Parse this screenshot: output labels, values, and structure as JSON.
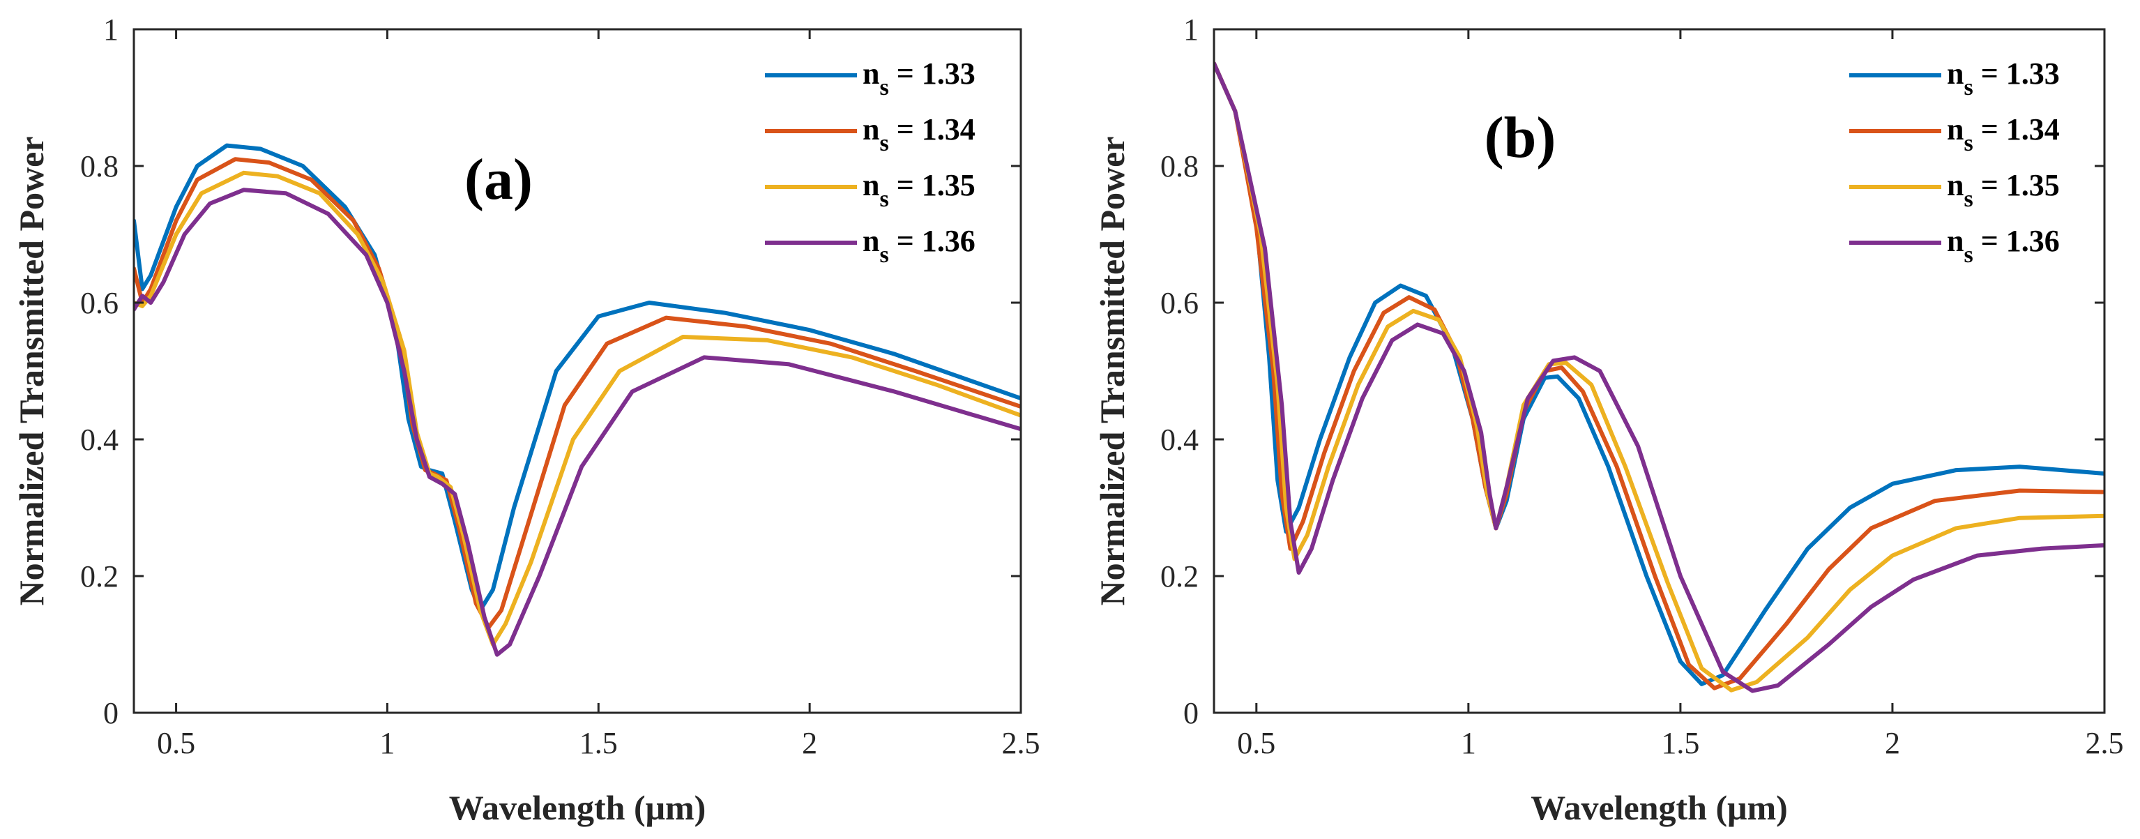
{
  "colors": [
    "#0072BD",
    "#D95319",
    "#EDB120",
    "#7E2F8E"
  ],
  "chart_data": [
    {
      "type": "line",
      "panel_label": "(a)",
      "xlabel": "Wavelength (μm)",
      "ylabel": "Normalized Transmitted Power",
      "xlim": [
        0.4,
        2.5
      ],
      "ylim": [
        0,
        1
      ],
      "xticks": [
        0.5,
        1,
        1.5,
        2,
        2.5
      ],
      "xtick_labels": [
        "0.5",
        "1",
        "1.5",
        "2",
        "2.5"
      ],
      "yticks": [
        0,
        0.2,
        0.4,
        0.6,
        0.8,
        1
      ],
      "ytick_labels": [
        "0",
        "0.2",
        "0.4",
        "0.6",
        "0.8",
        "1"
      ],
      "legend_position": "top-right",
      "series": [
        {
          "name": "n = 1.33",
          "symbol": "n",
          "subscript": "s",
          "value_text": " = 1.33",
          "points": [
            [
              0.4,
              0.72
            ],
            [
              0.42,
              0.62
            ],
            [
              0.44,
              0.64
            ],
            [
              0.5,
              0.74
            ],
            [
              0.55,
              0.8
            ],
            [
              0.62,
              0.83
            ],
            [
              0.7,
              0.825
            ],
            [
              0.8,
              0.8
            ],
            [
              0.9,
              0.74
            ],
            [
              0.97,
              0.67
            ],
            [
              1.02,
              0.56
            ],
            [
              1.05,
              0.43
            ],
            [
              1.08,
              0.36
            ],
            [
              1.1,
              0.355
            ],
            [
              1.13,
              0.35
            ],
            [
              1.16,
              0.28
            ],
            [
              1.2,
              0.18
            ],
            [
              1.22,
              0.15
            ],
            [
              1.25,
              0.18
            ],
            [
              1.3,
              0.3
            ],
            [
              1.4,
              0.5
            ],
            [
              1.5,
              0.58
            ],
            [
              1.62,
              0.6
            ],
            [
              1.8,
              0.585
            ],
            [
              2.0,
              0.56
            ],
            [
              2.2,
              0.525
            ],
            [
              2.5,
              0.46
            ]
          ]
        },
        {
          "name": "n = 1.34",
          "symbol": "n",
          "subscript": "s",
          "value_text": " = 1.34",
          "points": [
            [
              0.4,
              0.65
            ],
            [
              0.42,
              0.6
            ],
            [
              0.44,
              0.62
            ],
            [
              0.5,
              0.72
            ],
            [
              0.55,
              0.78
            ],
            [
              0.64,
              0.81
            ],
            [
              0.72,
              0.805
            ],
            [
              0.82,
              0.78
            ],
            [
              0.92,
              0.72
            ],
            [
              0.98,
              0.65
            ],
            [
              1.03,
              0.55
            ],
            [
              1.06,
              0.42
            ],
            [
              1.09,
              0.355
            ],
            [
              1.11,
              0.35
            ],
            [
              1.14,
              0.34
            ],
            [
              1.17,
              0.27
            ],
            [
              1.21,
              0.16
            ],
            [
              1.24,
              0.125
            ],
            [
              1.27,
              0.15
            ],
            [
              1.32,
              0.25
            ],
            [
              1.42,
              0.45
            ],
            [
              1.52,
              0.54
            ],
            [
              1.66,
              0.578
            ],
            [
              1.85,
              0.565
            ],
            [
              2.05,
              0.54
            ],
            [
              2.25,
              0.5
            ],
            [
              2.5,
              0.448
            ]
          ]
        },
        {
          "name": "n = 1.35",
          "symbol": "n",
          "subscript": "s",
          "value_text": " = 1.35",
          "points": [
            [
              0.4,
              0.6
            ],
            [
              0.42,
              0.595
            ],
            [
              0.44,
              0.61
            ],
            [
              0.5,
              0.7
            ],
            [
              0.56,
              0.76
            ],
            [
              0.66,
              0.79
            ],
            [
              0.74,
              0.785
            ],
            [
              0.84,
              0.76
            ],
            [
              0.93,
              0.7
            ],
            [
              0.99,
              0.63
            ],
            [
              1.04,
              0.53
            ],
            [
              1.07,
              0.41
            ],
            [
              1.1,
              0.35
            ],
            [
              1.12,
              0.345
            ],
            [
              1.15,
              0.33
            ],
            [
              1.18,
              0.26
            ],
            [
              1.22,
              0.15
            ],
            [
              1.25,
              0.1
            ],
            [
              1.28,
              0.13
            ],
            [
              1.34,
              0.22
            ],
            [
              1.44,
              0.4
            ],
            [
              1.55,
              0.5
            ],
            [
              1.7,
              0.55
            ],
            [
              1.9,
              0.545
            ],
            [
              2.1,
              0.52
            ],
            [
              2.3,
              0.48
            ],
            [
              2.5,
              0.435
            ]
          ]
        },
        {
          "name": "n = 1.36",
          "symbol": "n",
          "subscript": "s",
          "value_text": " = 1.36",
          "points": [
            [
              0.4,
              0.59
            ],
            [
              0.42,
              0.61
            ],
            [
              0.44,
              0.6
            ],
            [
              0.47,
              0.63
            ],
            [
              0.52,
              0.7
            ],
            [
              0.58,
              0.745
            ],
            [
              0.66,
              0.765
            ],
            [
              0.76,
              0.76
            ],
            [
              0.86,
              0.73
            ],
            [
              0.95,
              0.67
            ],
            [
              1.0,
              0.6
            ],
            [
              1.04,
              0.5
            ],
            [
              1.07,
              0.4
            ],
            [
              1.1,
              0.345
            ],
            [
              1.13,
              0.335
            ],
            [
              1.16,
              0.32
            ],
            [
              1.19,
              0.25
            ],
            [
              1.23,
              0.14
            ],
            [
              1.26,
              0.085
            ],
            [
              1.29,
              0.1
            ],
            [
              1.36,
              0.2
            ],
            [
              1.46,
              0.36
            ],
            [
              1.58,
              0.47
            ],
            [
              1.75,
              0.52
            ],
            [
              1.95,
              0.51
            ],
            [
              2.2,
              0.47
            ],
            [
              2.5,
              0.415
            ]
          ]
        }
      ]
    },
    {
      "type": "line",
      "panel_label": "(b)",
      "xlabel": "Wavelength (μm)",
      "ylabel": "Normalized Transmitted Power",
      "xlim": [
        0.4,
        2.5
      ],
      "ylim": [
        0,
        1
      ],
      "xticks": [
        0.5,
        1,
        1.5,
        2,
        2.5
      ],
      "xtick_labels": [
        "0.5",
        "1",
        "1.5",
        "2",
        "2.5"
      ],
      "yticks": [
        0,
        0.2,
        0.4,
        0.6,
        0.8,
        1
      ],
      "ytick_labels": [
        "0",
        "0.2",
        "0.4",
        "0.6",
        "0.8",
        "1"
      ],
      "legend_position": "top-right",
      "series": [
        {
          "name": "n = 1.33",
          "symbol": "n",
          "subscript": "s",
          "value_text": " = 1.33",
          "points": [
            [
              0.4,
              0.95
            ],
            [
              0.45,
              0.88
            ],
            [
              0.5,
              0.72
            ],
            [
              0.53,
              0.52
            ],
            [
              0.55,
              0.34
            ],
            [
              0.57,
              0.265
            ],
            [
              0.6,
              0.3
            ],
            [
              0.65,
              0.4
            ],
            [
              0.72,
              0.52
            ],
            [
              0.78,
              0.6
            ],
            [
              0.84,
              0.625
            ],
            [
              0.9,
              0.61
            ],
            [
              0.96,
              0.54
            ],
            [
              1.01,
              0.43
            ],
            [
              1.04,
              0.33
            ],
            [
              1.065,
              0.27
            ],
            [
              1.09,
              0.31
            ],
            [
              1.13,
              0.43
            ],
            [
              1.18,
              0.49
            ],
            [
              1.21,
              0.492
            ],
            [
              1.26,
              0.46
            ],
            [
              1.33,
              0.36
            ],
            [
              1.42,
              0.2
            ],
            [
              1.5,
              0.075
            ],
            [
              1.55,
              0.042
            ],
            [
              1.6,
              0.055
            ],
            [
              1.7,
              0.15
            ],
            [
              1.8,
              0.24
            ],
            [
              1.9,
              0.3
            ],
            [
              2.0,
              0.335
            ],
            [
              2.15,
              0.355
            ],
            [
              2.3,
              0.36
            ],
            [
              2.5,
              0.35
            ]
          ]
        },
        {
          "name": "n = 1.34",
          "symbol": "n",
          "subscript": "s",
          "value_text": " = 1.34",
          "points": [
            [
              0.4,
              0.95
            ],
            [
              0.45,
              0.88
            ],
            [
              0.5,
              0.71
            ],
            [
              0.54,
              0.5
            ],
            [
              0.56,
              0.32
            ],
            [
              0.58,
              0.24
            ],
            [
              0.61,
              0.28
            ],
            [
              0.66,
              0.38
            ],
            [
              0.73,
              0.5
            ],
            [
              0.8,
              0.585
            ],
            [
              0.86,
              0.608
            ],
            [
              0.92,
              0.59
            ],
            [
              0.97,
              0.53
            ],
            [
              1.01,
              0.43
            ],
            [
              1.04,
              0.33
            ],
            [
              1.065,
              0.27
            ],
            [
              1.09,
              0.32
            ],
            [
              1.13,
              0.44
            ],
            [
              1.18,
              0.5
            ],
            [
              1.22,
              0.505
            ],
            [
              1.27,
              0.47
            ],
            [
              1.35,
              0.36
            ],
            [
              1.44,
              0.2
            ],
            [
              1.52,
              0.07
            ],
            [
              1.58,
              0.036
            ],
            [
              1.64,
              0.05
            ],
            [
              1.75,
              0.13
            ],
            [
              1.85,
              0.21
            ],
            [
              1.95,
              0.27
            ],
            [
              2.1,
              0.31
            ],
            [
              2.3,
              0.325
            ],
            [
              2.5,
              0.323
            ]
          ]
        },
        {
          "name": "n = 1.35",
          "symbol": "n",
          "subscript": "s",
          "value_text": " = 1.35",
          "points": [
            [
              0.4,
              0.95
            ],
            [
              0.45,
              0.88
            ],
            [
              0.51,
              0.7
            ],
            [
              0.55,
              0.48
            ],
            [
              0.57,
              0.3
            ],
            [
              0.59,
              0.225
            ],
            [
              0.62,
              0.26
            ],
            [
              0.67,
              0.36
            ],
            [
              0.74,
              0.48
            ],
            [
              0.81,
              0.565
            ],
            [
              0.87,
              0.588
            ],
            [
              0.93,
              0.575
            ],
            [
              0.98,
              0.52
            ],
            [
              1.02,
              0.42
            ],
            [
              1.045,
              0.32
            ],
            [
              1.065,
              0.27
            ],
            [
              1.09,
              0.33
            ],
            [
              1.13,
              0.45
            ],
            [
              1.19,
              0.51
            ],
            [
              1.23,
              0.512
            ],
            [
              1.29,
              0.48
            ],
            [
              1.37,
              0.36
            ],
            [
              1.47,
              0.19
            ],
            [
              1.55,
              0.065
            ],
            [
              1.62,
              0.033
            ],
            [
              1.68,
              0.045
            ],
            [
              1.8,
              0.11
            ],
            [
              1.9,
              0.18
            ],
            [
              2.0,
              0.23
            ],
            [
              2.15,
              0.27
            ],
            [
              2.3,
              0.285
            ],
            [
              2.5,
              0.288
            ]
          ]
        },
        {
          "name": "n = 1.36",
          "symbol": "n",
          "subscript": "s",
          "value_text": " = 1.36",
          "points": [
            [
              0.4,
              0.95
            ],
            [
              0.45,
              0.88
            ],
            [
              0.52,
              0.68
            ],
            [
              0.56,
              0.45
            ],
            [
              0.58,
              0.28
            ],
            [
              0.6,
              0.205
            ],
            [
              0.63,
              0.24
            ],
            [
              0.68,
              0.34
            ],
            [
              0.75,
              0.46
            ],
            [
              0.82,
              0.545
            ],
            [
              0.88,
              0.568
            ],
            [
              0.94,
              0.555
            ],
            [
              0.99,
              0.5
            ],
            [
              1.03,
              0.41
            ],
            [
              1.05,
              0.32
            ],
            [
              1.065,
              0.27
            ],
            [
              1.09,
              0.33
            ],
            [
              1.14,
              0.46
            ],
            [
              1.2,
              0.515
            ],
            [
              1.25,
              0.52
            ],
            [
              1.31,
              0.5
            ],
            [
              1.4,
              0.39
            ],
            [
              1.5,
              0.2
            ],
            [
              1.6,
              0.06
            ],
            [
              1.67,
              0.032
            ],
            [
              1.73,
              0.04
            ],
            [
              1.85,
              0.1
            ],
            [
              1.95,
              0.155
            ],
            [
              2.05,
              0.195
            ],
            [
              2.2,
              0.23
            ],
            [
              2.35,
              0.24
            ],
            [
              2.5,
              0.245
            ]
          ]
        }
      ]
    }
  ]
}
